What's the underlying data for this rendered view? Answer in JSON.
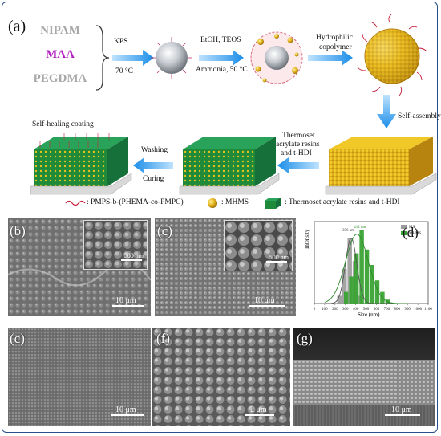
{
  "panels": {
    "a": "(a)",
    "b": "(b)",
    "c1": "(c)",
    "d": "(d)",
    "e": "(c)",
    "f": "(f)",
    "g": "(g)"
  },
  "monomers": [
    "NIPAM",
    "MAA",
    "PEGDMA"
  ],
  "monomer_colors": [
    "#a9a9a9",
    "#b21fbf",
    "#a9a9a9"
  ],
  "step1": {
    "reagent": "KPS",
    "condition": "70 °C"
  },
  "step2": {
    "reagent": "EtOH, TEOS",
    "condition": "Ammonia, 50 °C"
  },
  "step3": {
    "line1": "Hydrophilic",
    "line2": "copolymer"
  },
  "step4": "Self-assembly",
  "step5": {
    "line1": "Thermoset",
    "line2": "acrylate resins",
    "line3": "and t-HDI"
  },
  "step6": {
    "top": "Washing",
    "bottom": "Curing"
  },
  "coating_label": "Self-healing coating",
  "legend": {
    "polymer": ": PMPS-b-(PHEMA-co-PMPC)",
    "mhms": ": MHMS",
    "resin": ": Thermoset acrylate resins and t-HDI"
  },
  "scalebars": {
    "b_inset": "500 nm",
    "b": "10 μm",
    "c_inset": "500 nm",
    "c": "10 μm",
    "e": "10 μm",
    "f": "2 μm",
    "g": "10 μm"
  },
  "chart_data": {
    "type": "bar",
    "xlabel": "Size (nm)",
    "ylabel": "Intensity",
    "xlim": [
      0,
      1100
    ],
    "xticks": [
      "0",
      "100",
      "200",
      "300",
      "400",
      "500",
      "600",
      "700",
      "800",
      "900",
      "1000",
      "1100"
    ],
    "legend_position": "top-right",
    "annotations": [
      "356 nm",
      "412 nm"
    ],
    "series": [
      {
        "name": "MS",
        "color": "#9a9a9a",
        "x": [
          250,
          300,
          350,
          400,
          450
        ],
        "values": [
          0.1,
          0.45,
          0.85,
          0.55,
          0.1
        ]
      },
      {
        "name": "MHMS",
        "color": "#3aa335",
        "x": [
          300,
          350,
          400,
          450,
          500,
          550,
          600,
          650,
          700
        ],
        "values": [
          0.15,
          0.35,
          0.65,
          0.95,
          0.7,
          0.5,
          0.3,
          0.15,
          0.05
        ]
      }
    ]
  }
}
